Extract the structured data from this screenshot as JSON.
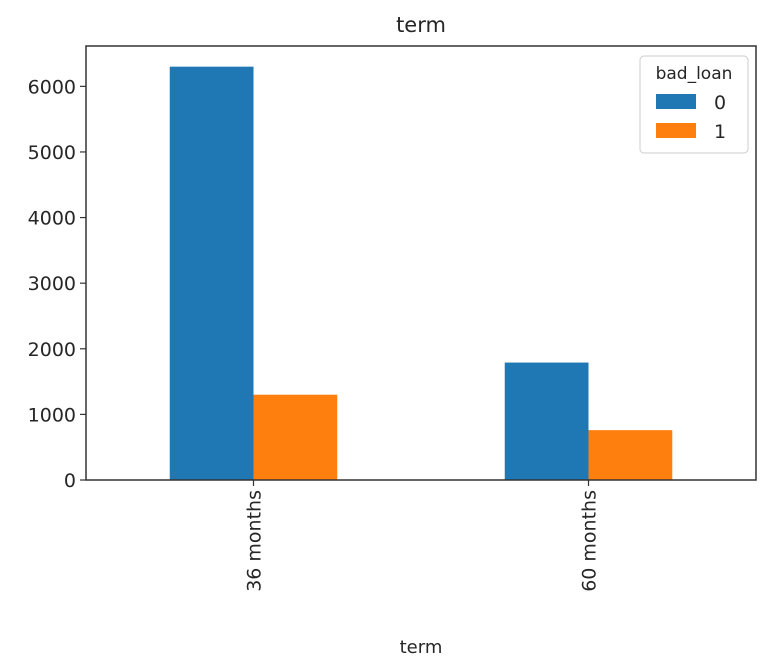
{
  "chart_data": {
    "type": "bar",
    "title": "term",
    "xlabel": "term",
    "ylabel": "",
    "categories": [
      "36 months",
      "60 months"
    ],
    "series": [
      {
        "name": "0",
        "values": [
          6300,
          1790
        ],
        "color": "#1f77b4"
      },
      {
        "name": "1",
        "values": [
          1300,
          760
        ],
        "color": "#ff7f0e"
      }
    ],
    "ylim": [
      0,
      6615
    ],
    "yticks": [
      "0",
      "1000",
      "2000",
      "3000",
      "4000",
      "5000",
      "6000"
    ],
    "legend": {
      "title": "bad_loan",
      "placement": "top-right"
    },
    "grid": false
  }
}
